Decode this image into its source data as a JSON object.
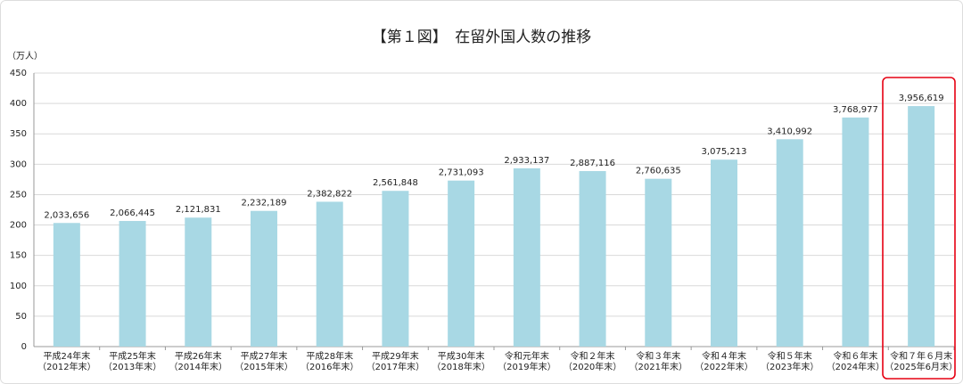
{
  "chart_data": {
    "type": "bar",
    "title": "【第１図】　在留外国人数の推移",
    "y_label": "（万人）",
    "categories": [
      "平成24年末\n（2012年末）",
      "平成25年末\n（2013年末）",
      "平成26年末\n（2014年末）",
      "平成27年末\n（2015年末）",
      "平成28年末\n（2016年末）",
      "平成29年末\n（2017年末）",
      "平成30年末\n（2018年末）",
      "令和元年末\n（2019年末）",
      "令和２年末\n（2020年末）",
      "令和３年末\n（2021年末）",
      "令和４年末\n（2022年末）",
      "令和５年末\n（2023年末）",
      "令和６年末\n（2024年末）",
      "令和７年６月末\n（2025年6月末）"
    ],
    "values": [
      203.3656,
      206.6445,
      212.1831,
      223.2189,
      238.2822,
      256.1848,
      273.1093,
      293.3137,
      288.7116,
      276.0635,
      307.5213,
      341.0992,
      376.8977,
      395.6619
    ],
    "value_labels": [
      "2,033,656",
      "2,066,445",
      "2,121,831",
      "2,232,189",
      "2,382,822",
      "2,561,848",
      "2,731,093",
      "2,933,137",
      "2,887,116",
      "2,760,635",
      "3,075,213",
      "3,410,992",
      "3,768,977",
      "3,956,619"
    ],
    "color": "#a8d8e4",
    "ylim": [
      0,
      450
    ],
    "yticks": [
      0,
      50,
      100,
      150,
      200,
      250,
      300,
      350,
      400,
      450
    ],
    "grid": true
  }
}
